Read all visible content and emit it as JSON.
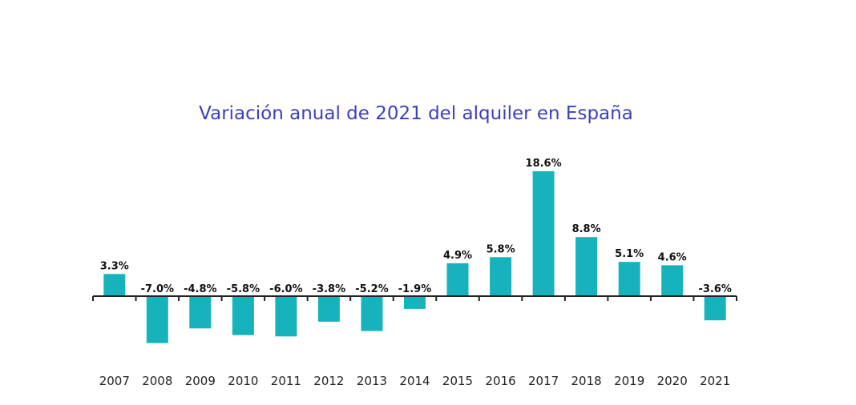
{
  "chart_data": {
    "type": "bar",
    "title": "Variación anual de 2021 del alquiler en España",
    "xlabel": "",
    "ylabel": "",
    "categories": [
      "2007",
      "2008",
      "2009",
      "2010",
      "2011",
      "2012",
      "2013",
      "2014",
      "2015",
      "2016",
      "2017",
      "2018",
      "2019",
      "2020",
      "2021"
    ],
    "values": [
      3.3,
      -7.0,
      -4.8,
      -5.8,
      -6.0,
      -3.8,
      -5.2,
      -1.9,
      4.9,
      5.8,
      18.6,
      8.8,
      5.1,
      4.6,
      -3.6
    ],
    "value_labels": [
      "3.3%",
      "-7.0%",
      "-4.8%",
      "-5.8%",
      "-6.0%",
      "-3.8%",
      "-5.2%",
      "-1.9%",
      "4.9%",
      "5.8%",
      "18.6%",
      "8.8%",
      "5.1%",
      "4.6%",
      "-3.6%"
    ],
    "ylim": [
      -7.5,
      19
    ],
    "grid": false,
    "bar_color": "#17b3bd",
    "axis_color": "#222222",
    "title_color": "#3b3fbf"
  }
}
